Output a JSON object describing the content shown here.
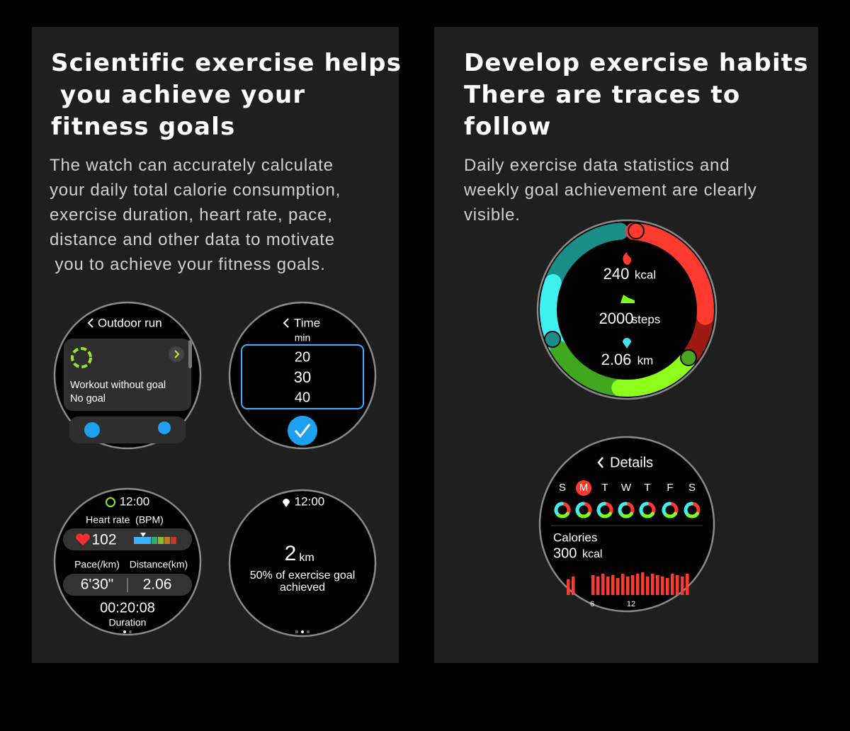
{
  "left": {
    "title": [
      "Scientific exercise helps",
      " you achieve your",
      "fitness goals"
    ],
    "body": [
      "The watch can accurately calculate",
      "your daily total calorie consumption,",
      "exercise duration, heart rate, pace,",
      "distance and other data to motivate",
      " you to achieve your fitness goals."
    ],
    "watches": {
      "outdoor_run": {
        "header": "Outdoor run",
        "item": "Workout without goal",
        "goal": "No goal"
      },
      "time": {
        "header": "Time",
        "unit": "min",
        "options": [
          "20",
          "30",
          "40"
        ]
      },
      "workout": {
        "time": "12:00",
        "heart_label": "Heart rate  (BPM)",
        "heart_rate": "102",
        "pace_label": "Pace(/km)",
        "distance_label": "Distance(km)",
        "pace": "6'30\"",
        "distance": "2.06",
        "duration": "00:20:08",
        "duration_label": "Duration"
      },
      "goal": {
        "time": "12:00",
        "distance": "2",
        "unit": "km",
        "progress": [
          "50% of exercise goal",
          "achieved"
        ]
      }
    }
  },
  "right": {
    "title": [
      "Develop exercise habits",
      "There are traces to",
      "follow"
    ],
    "body": [
      "Daily exercise data statistics and",
      "weekly goal achievement are clearly",
      "visible."
    ],
    "watches": {
      "rings": {
        "calories": "240",
        "calories_unit": "kcal",
        "steps": "2000",
        "steps_unit": "steps",
        "distance": "2.06",
        "distance_unit": "km"
      },
      "details": {
        "header": "Details",
        "days": [
          "S",
          "M",
          "T",
          "W",
          "T",
          "F",
          "S"
        ],
        "label": "Calories",
        "value": "300",
        "unit": "kcal",
        "axis": [
          "6",
          "12"
        ]
      }
    }
  }
}
